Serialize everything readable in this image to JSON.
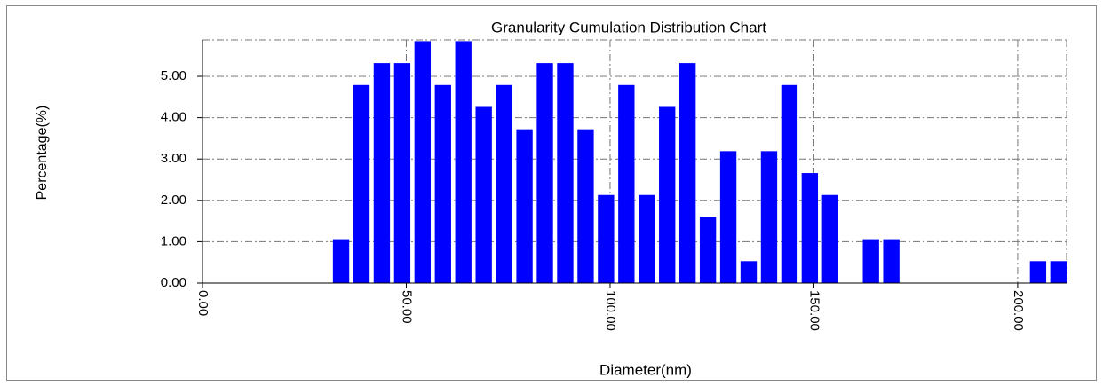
{
  "chart_data": {
    "type": "bar",
    "title": "Granularity Cumulation Distribution  Chart",
    "x_label": "Diameter(nm)",
    "y_label": "Percentage(%)",
    "x": [
      34,
      39,
      44,
      49,
      54,
      59,
      64,
      69,
      74,
      79,
      84,
      89,
      94,
      99,
      104,
      109,
      114,
      119,
      124,
      129,
      134,
      139,
      144,
      149,
      154,
      164,
      169,
      205,
      210
    ],
    "values": [
      1.06,
      4.79,
      5.32,
      5.32,
      5.85,
      4.79,
      5.85,
      4.26,
      4.79,
      3.72,
      5.32,
      5.32,
      3.72,
      2.13,
      4.79,
      2.13,
      4.26,
      5.32,
      1.6,
      3.19,
      0.53,
      3.19,
      4.79,
      2.66,
      2.13,
      1.06,
      1.06,
      0.53,
      0.53
    ],
    "color": "#0000ff",
    "xlim": [
      0,
      212
    ],
    "xticks": [
      {
        "value": 0,
        "label": "0.00"
      },
      {
        "value": 50,
        "label": "50.00"
      },
      {
        "value": 100,
        "label": "100.00"
      },
      {
        "value": 150,
        "label": "150.00"
      },
      {
        "value": 200,
        "label": "200.00"
      }
    ],
    "ylim": [
      0,
      5.88
    ],
    "yticks": [
      {
        "value": 0,
        "label": "0.00"
      },
      {
        "value": 1,
        "label": "1.00"
      },
      {
        "value": 2,
        "label": "2.00"
      },
      {
        "value": 3,
        "label": "3.00"
      },
      {
        "value": 4,
        "label": "4.00"
      },
      {
        "value": 5,
        "label": "5.00"
      }
    ],
    "grid": true
  }
}
